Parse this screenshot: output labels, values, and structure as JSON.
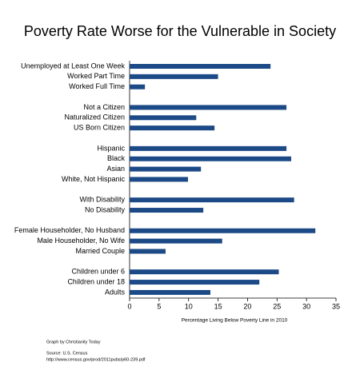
{
  "chart_data": {
    "type": "hbar",
    "title": "Poverty Rate Worse for the Vulnerable in Society",
    "x_label": "Percentage Living Below Poverty Line in 2010",
    "credit": "Graph by Christianity Today",
    "source": "Source: U.S. Census",
    "source_url": "http://www.census.gov/prod/2011pubs/p60-239.pdf",
    "color": "#1c4a86",
    "categories": [
      "Unemployed at Least One Week",
      "Worked Part Time",
      "Worked Full Time",
      null,
      "Not a Citizen",
      "Naturalized Citizen",
      "US Born Citizen",
      null,
      "Hispanic",
      "Black",
      "Asian",
      "White, Not Hispanic",
      null,
      "With Disability",
      "No Disability",
      null,
      "Female Householder, No Husband",
      "Male Householder, No Wife",
      "Married Couple",
      null,
      "Children under 6",
      "Children under 18",
      "Adults"
    ],
    "values": [
      23.9,
      15,
      2.6,
      null,
      26.6,
      11.3,
      14.4,
      null,
      26.6,
      27.4,
      12.1,
      9.9,
      null,
      27.9,
      12.5,
      null,
      31.5,
      15.7,
      6.1,
      null,
      25.3,
      22,
      13.7
    ],
    "xlim": [
      0,
      35
    ],
    "xticks": [
      0,
      5,
      10,
      15,
      20,
      25,
      30,
      35
    ]
  }
}
